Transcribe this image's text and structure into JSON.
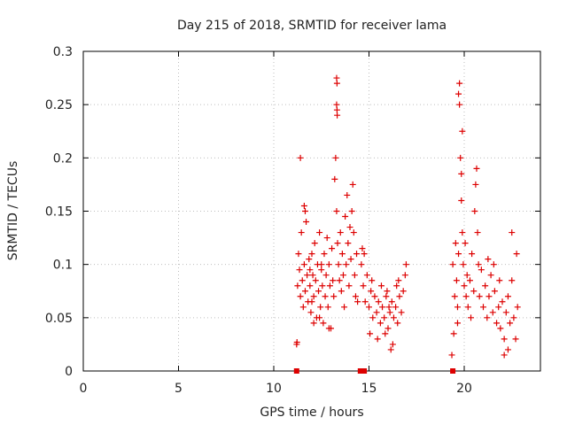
{
  "chart_data": {
    "type": "scatter",
    "title": "Day 215 of 2018, SRMTID for receiver lama",
    "xlabel": "GPS time / hours",
    "ylabel": "SRMTID / TECUs",
    "xlim": [
      0,
      24
    ],
    "ylim": [
      0,
      0.3
    ],
    "x_ticks": [
      0,
      5,
      10,
      15,
      20
    ],
    "x_tick_labels": [
      "0",
      "5",
      "10",
      "15",
      "20"
    ],
    "y_ticks": [
      0,
      0.05,
      0.1,
      0.15,
      0.2,
      0.25,
      0.3
    ],
    "y_tick_labels": [
      "0",
      "0.05",
      "0.1",
      "0.15",
      "0.2",
      "0.25",
      "0.3"
    ],
    "grid": true,
    "marker": "plus",
    "series": [
      {
        "name": "SRMTID",
        "color": "#dd0000",
        "points": [
          [
            11.25,
            0.08
          ],
          [
            11.3,
            0.11
          ],
          [
            11.35,
            0.095
          ],
          [
            11.4,
            0.07
          ],
          [
            11.45,
            0.13
          ],
          [
            11.5,
            0.085
          ],
          [
            11.55,
            0.06
          ],
          [
            11.6,
            0.1
          ],
          [
            11.65,
            0.075
          ],
          [
            11.7,
            0.14
          ],
          [
            11.75,
            0.09
          ],
          [
            11.8,
            0.065
          ],
          [
            11.85,
            0.105
          ],
          [
            11.9,
            0.08
          ],
          [
            11.95,
            0.055
          ],
          [
            12.0,
            0.11
          ],
          [
            12.05,
            0.09
          ],
          [
            12.1,
            0.07
          ],
          [
            12.15,
            0.12
          ],
          [
            12.2,
            0.085
          ],
          [
            12.25,
            0.05
          ],
          [
            12.3,
            0.1
          ],
          [
            12.35,
            0.075
          ],
          [
            12.4,
            0.13
          ],
          [
            12.45,
            0.06
          ],
          [
            12.5,
            0.095
          ],
          [
            12.55,
            0.08
          ],
          [
            12.6,
            0.045
          ],
          [
            12.65,
            0.11
          ],
          [
            12.7,
            0.07
          ],
          [
            12.75,
            0.09
          ],
          [
            12.8,
            0.125
          ],
          [
            12.85,
            0.06
          ],
          [
            12.9,
            0.1
          ],
          [
            12.95,
            0.08
          ],
          [
            13.0,
            0.04
          ],
          [
            13.05,
            0.115
          ],
          [
            13.1,
            0.085
          ],
          [
            13.15,
            0.07
          ],
          [
            13.2,
            0.18
          ],
          [
            13.25,
            0.2
          ],
          [
            13.3,
            0.15
          ],
          [
            13.35,
            0.12
          ],
          [
            13.4,
            0.1
          ],
          [
            13.45,
            0.085
          ],
          [
            13.5,
            0.13
          ],
          [
            13.55,
            0.075
          ],
          [
            13.6,
            0.11
          ],
          [
            13.65,
            0.09
          ],
          [
            13.7,
            0.06
          ],
          [
            13.75,
            0.145
          ],
          [
            13.8,
            0.1
          ],
          [
            13.85,
            0.165
          ],
          [
            13.9,
            0.12
          ],
          [
            13.95,
            0.08
          ],
          [
            14.0,
            0.135
          ],
          [
            14.05,
            0.105
          ],
          [
            14.1,
            0.15
          ],
          [
            14.15,
            0.175
          ],
          [
            14.2,
            0.13
          ],
          [
            14.25,
            0.09
          ],
          [
            14.3,
            0.07
          ],
          [
            14.35,
            0.11
          ],
          [
            14.4,
            0.065
          ],
          [
            11.2,
            0.025
          ],
          [
            11.22,
            0.027
          ],
          [
            11.4,
            0.2
          ],
          [
            13.3,
            0.275
          ],
          [
            13.32,
            0.27
          ],
          [
            13.3,
            0.25
          ],
          [
            13.32,
            0.245
          ],
          [
            13.33,
            0.24
          ],
          [
            11.6,
            0.155
          ],
          [
            11.65,
            0.15
          ],
          [
            12.1,
            0.045
          ],
          [
            12.9,
            0.04
          ],
          [
            12.5,
            0.1
          ],
          [
            12.0,
            0.065
          ],
          [
            11.9,
            0.095
          ],
          [
            12.4,
            0.05
          ],
          [
            14.6,
            0.1
          ],
          [
            14.7,
            0.08
          ],
          [
            14.8,
            0.065
          ],
          [
            14.9,
            0.09
          ],
          [
            15.0,
            0.06
          ],
          [
            15.1,
            0.075
          ],
          [
            15.2,
            0.05
          ],
          [
            15.3,
            0.07
          ],
          [
            15.4,
            0.055
          ],
          [
            15.5,
            0.065
          ],
          [
            15.6,
            0.045
          ],
          [
            15.7,
            0.06
          ],
          [
            15.8,
            0.05
          ],
          [
            15.9,
            0.07
          ],
          [
            16.0,
            0.04
          ],
          [
            16.1,
            0.055
          ],
          [
            16.2,
            0.065
          ],
          [
            16.3,
            0.05
          ],
          [
            16.4,
            0.06
          ],
          [
            16.5,
            0.045
          ],
          [
            16.6,
            0.07
          ],
          [
            16.7,
            0.055
          ],
          [
            16.8,
            0.075
          ],
          [
            16.9,
            0.09
          ],
          [
            15.05,
            0.035
          ],
          [
            15.45,
            0.03
          ],
          [
            15.85,
            0.035
          ],
          [
            16.25,
            0.025
          ],
          [
            16.15,
            0.02
          ],
          [
            15.65,
            0.08
          ],
          [
            16.55,
            0.085
          ],
          [
            16.95,
            0.1
          ],
          [
            14.65,
            0.115
          ],
          [
            14.75,
            0.11
          ],
          [
            15.15,
            0.085
          ],
          [
            15.95,
            0.075
          ],
          [
            16.45,
            0.08
          ],
          [
            16.05,
            0.06
          ],
          [
            19.35,
            0.015
          ],
          [
            19.4,
            0.1
          ],
          [
            19.5,
            0.07
          ],
          [
            19.55,
            0.12
          ],
          [
            19.6,
            0.085
          ],
          [
            19.65,
            0.06
          ],
          [
            19.7,
            0.11
          ],
          [
            19.75,
            0.27
          ],
          [
            19.7,
            0.26
          ],
          [
            19.75,
            0.25
          ],
          [
            19.8,
            0.2
          ],
          [
            19.85,
            0.185
          ],
          [
            19.9,
            0.225
          ],
          [
            19.85,
            0.16
          ],
          [
            19.9,
            0.13
          ],
          [
            19.95,
            0.1
          ],
          [
            20.0,
            0.08
          ],
          [
            20.05,
            0.12
          ],
          [
            20.1,
            0.07
          ],
          [
            20.15,
            0.09
          ],
          [
            20.2,
            0.06
          ],
          [
            20.3,
            0.085
          ],
          [
            20.4,
            0.11
          ],
          [
            20.5,
            0.075
          ],
          [
            20.55,
            0.15
          ],
          [
            20.6,
            0.175
          ],
          [
            20.65,
            0.19
          ],
          [
            20.7,
            0.13
          ],
          [
            20.75,
            0.1
          ],
          [
            20.8,
            0.07
          ],
          [
            20.9,
            0.095
          ],
          [
            21.0,
            0.06
          ],
          [
            21.1,
            0.08
          ],
          [
            21.2,
            0.05
          ],
          [
            21.3,
            0.07
          ],
          [
            21.4,
            0.09
          ],
          [
            21.5,
            0.055
          ],
          [
            21.6,
            0.075
          ],
          [
            21.7,
            0.045
          ],
          [
            21.8,
            0.06
          ],
          [
            21.9,
            0.04
          ],
          [
            22.0,
            0.065
          ],
          [
            22.1,
            0.03
          ],
          [
            22.2,
            0.055
          ],
          [
            22.3,
            0.07
          ],
          [
            22.4,
            0.045
          ],
          [
            22.5,
            0.085
          ],
          [
            22.6,
            0.05
          ],
          [
            22.7,
            0.03
          ],
          [
            22.75,
            0.11
          ],
          [
            22.8,
            0.06
          ],
          [
            22.5,
            0.13
          ],
          [
            22.3,
            0.02
          ],
          [
            22.1,
            0.015
          ],
          [
            19.45,
            0.035
          ],
          [
            19.65,
            0.045
          ],
          [
            21.25,
            0.105
          ],
          [
            21.55,
            0.1
          ],
          [
            20.35,
            0.05
          ],
          [
            21.85,
            0.085
          ]
        ]
      }
    ],
    "baseline_markers": {
      "color": "#dd0000",
      "x": [
        11.2,
        14.55,
        14.65,
        14.75,
        19.4
      ]
    }
  }
}
